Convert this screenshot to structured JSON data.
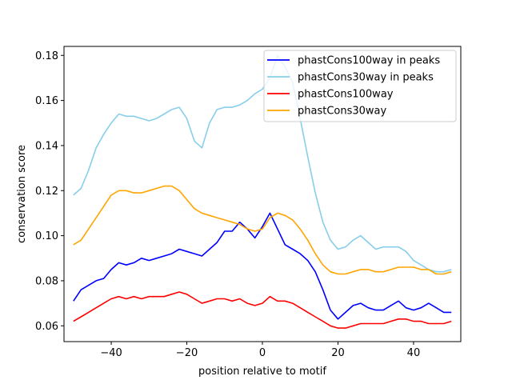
{
  "chart_data": {
    "type": "line",
    "title": "",
    "xlabel": "position relative to motif",
    "ylabel": "conservation score",
    "xlim": [
      -52.5,
      52.5
    ],
    "ylim": [
      0.053,
      0.184
    ],
    "xticks": [
      -40,
      -20,
      0,
      20,
      40
    ],
    "yticks": [
      0.06,
      0.08,
      0.1,
      0.12,
      0.14,
      0.16,
      0.18
    ],
    "ytick_labels": [
      "0.06",
      "0.08",
      "0.10",
      "0.12",
      "0.14",
      "0.16",
      "0.18"
    ],
    "grid": false,
    "legend_position": "top-right",
    "series": [
      {
        "name": "phastCons100way in peaks",
        "color": "#0000ff",
        "x": [
          -50,
          -48,
          -46,
          -44,
          -42,
          -40,
          -38,
          -36,
          -34,
          -32,
          -30,
          -28,
          -26,
          -24,
          -22,
          -20,
          -18,
          -16,
          -14,
          -12,
          -10,
          -8,
          -6,
          -4,
          -2,
          0,
          2,
          4,
          6,
          8,
          10,
          12,
          14,
          16,
          18,
          20,
          22,
          24,
          26,
          28,
          30,
          32,
          34,
          36,
          38,
          40,
          42,
          44,
          46,
          48,
          50
        ],
        "y": [
          0.071,
          0.076,
          0.078,
          0.08,
          0.081,
          0.085,
          0.088,
          0.087,
          0.088,
          0.09,
          0.089,
          0.09,
          0.091,
          0.092,
          0.094,
          0.093,
          0.092,
          0.091,
          0.094,
          0.097,
          0.102,
          0.102,
          0.106,
          0.103,
          0.099,
          0.104,
          0.11,
          0.103,
          0.096,
          0.094,
          0.092,
          0.089,
          0.084,
          0.076,
          0.067,
          0.063,
          0.066,
          0.069,
          0.07,
          0.068,
          0.067,
          0.067,
          0.069,
          0.071,
          0.068,
          0.067,
          0.068,
          0.07,
          0.068,
          0.066,
          0.066
        ]
      },
      {
        "name": "phastCons30way in peaks",
        "color": "#87ceeb",
        "x": [
          -50,
          -48,
          -46,
          -44,
          -42,
          -40,
          -38,
          -36,
          -34,
          -32,
          -30,
          -28,
          -26,
          -24,
          -22,
          -20,
          -18,
          -16,
          -14,
          -12,
          -10,
          -8,
          -6,
          -4,
          -2,
          0,
          2,
          4,
          6,
          8,
          10,
          12,
          14,
          16,
          18,
          20,
          22,
          24,
          26,
          28,
          30,
          32,
          34,
          36,
          38,
          40,
          42,
          44,
          46,
          48,
          50
        ],
        "y": [
          0.118,
          0.121,
          0.129,
          0.139,
          0.145,
          0.15,
          0.154,
          0.153,
          0.153,
          0.152,
          0.151,
          0.152,
          0.154,
          0.156,
          0.157,
          0.152,
          0.142,
          0.139,
          0.15,
          0.156,
          0.157,
          0.157,
          0.158,
          0.16,
          0.163,
          0.165,
          0.17,
          0.18,
          0.175,
          0.168,
          0.152,
          0.135,
          0.119,
          0.106,
          0.098,
          0.094,
          0.095,
          0.098,
          0.1,
          0.097,
          0.094,
          0.095,
          0.095,
          0.095,
          0.093,
          0.089,
          0.087,
          0.085,
          0.084,
          0.084,
          0.085
        ]
      },
      {
        "name": "phastCons100way",
        "color": "#ff0000",
        "x": [
          -50,
          -48,
          -46,
          -44,
          -42,
          -40,
          -38,
          -36,
          -34,
          -32,
          -30,
          -28,
          -26,
          -24,
          -22,
          -20,
          -18,
          -16,
          -14,
          -12,
          -10,
          -8,
          -6,
          -4,
          -2,
          0,
          2,
          4,
          6,
          8,
          10,
          12,
          14,
          16,
          18,
          20,
          22,
          24,
          26,
          28,
          30,
          32,
          34,
          36,
          38,
          40,
          42,
          44,
          46,
          48,
          50
        ],
        "y": [
          0.062,
          0.064,
          0.066,
          0.068,
          0.07,
          0.072,
          0.073,
          0.072,
          0.073,
          0.072,
          0.073,
          0.073,
          0.073,
          0.074,
          0.075,
          0.074,
          0.072,
          0.07,
          0.071,
          0.072,
          0.072,
          0.071,
          0.072,
          0.07,
          0.069,
          0.07,
          0.073,
          0.071,
          0.071,
          0.07,
          0.068,
          0.066,
          0.064,
          0.062,
          0.06,
          0.059,
          0.059,
          0.06,
          0.061,
          0.061,
          0.061,
          0.061,
          0.062,
          0.063,
          0.063,
          0.062,
          0.062,
          0.061,
          0.061,
          0.061,
          0.062
        ]
      },
      {
        "name": "phastCons30way",
        "color": "#ffa500",
        "x": [
          -50,
          -48,
          -46,
          -44,
          -42,
          -40,
          -38,
          -36,
          -34,
          -32,
          -30,
          -28,
          -26,
          -24,
          -22,
          -20,
          -18,
          -16,
          -14,
          -12,
          -10,
          -8,
          -6,
          -4,
          -2,
          0,
          2,
          4,
          6,
          8,
          10,
          12,
          14,
          16,
          18,
          20,
          22,
          24,
          26,
          28,
          30,
          32,
          34,
          36,
          38,
          40,
          42,
          44,
          46,
          48,
          50
        ],
        "y": [
          0.096,
          0.098,
          0.103,
          0.108,
          0.113,
          0.118,
          0.12,
          0.12,
          0.119,
          0.119,
          0.12,
          0.121,
          0.122,
          0.122,
          0.12,
          0.116,
          0.112,
          0.11,
          0.109,
          0.108,
          0.107,
          0.106,
          0.105,
          0.103,
          0.102,
          0.103,
          0.108,
          0.11,
          0.109,
          0.107,
          0.103,
          0.098,
          0.092,
          0.087,
          0.084,
          0.083,
          0.083,
          0.084,
          0.085,
          0.085,
          0.084,
          0.084,
          0.085,
          0.086,
          0.086,
          0.086,
          0.085,
          0.085,
          0.083,
          0.083,
          0.084
        ]
      }
    ]
  }
}
